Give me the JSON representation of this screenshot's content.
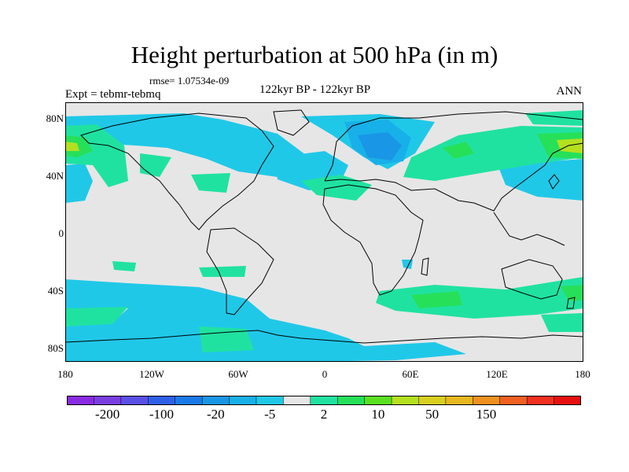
{
  "title": "Height perturbation at 500 hPa (in m)",
  "rmse": "rmse= 1.07534e-09",
  "experiment": "Expt = tebmr-tebmq",
  "period": "122kyr BP - 122kyr BP",
  "season": "ANN",
  "lat_labels": [
    "80N",
    "40N",
    "0",
    "40S",
    "80S"
  ],
  "lon_labels": [
    "180",
    "120W",
    "60W",
    "0",
    "60E",
    "120E",
    "180"
  ],
  "colorbar": {
    "colors": [
      "#8a2be2",
      "#7a3fe0",
      "#5a4fe6",
      "#2f5fe6",
      "#1a7ae8",
      "#1a96e6",
      "#18b0e8",
      "#20c8e8",
      "#e6e6e6",
      "#20e2a0",
      "#26e05a",
      "#5ae020",
      "#b4e020",
      "#d8d020",
      "#e8b820",
      "#f09020",
      "#f06020",
      "#f03020",
      "#e81010"
    ],
    "labels": [
      {
        "text": "-200",
        "index": 1
      },
      {
        "text": "-100",
        "index": 3
      },
      {
        "text": "-20",
        "index": 5
      },
      {
        "text": "-5",
        "index": 7
      },
      {
        "text": "2",
        "index": 9
      },
      {
        "text": "10",
        "index": 11
      },
      {
        "text": "50",
        "index": 13
      },
      {
        "text": "150",
        "index": 15
      }
    ]
  },
  "field_colors": {
    "background": "#e6e6e6",
    "neg_light": "#20c8e8",
    "neg_mid": "#18b0e8",
    "neg_strong": "#1a96e6",
    "pos_light": "#20e2a0",
    "pos_mid": "#26e05a",
    "pos_strong": "#b4e020"
  }
}
